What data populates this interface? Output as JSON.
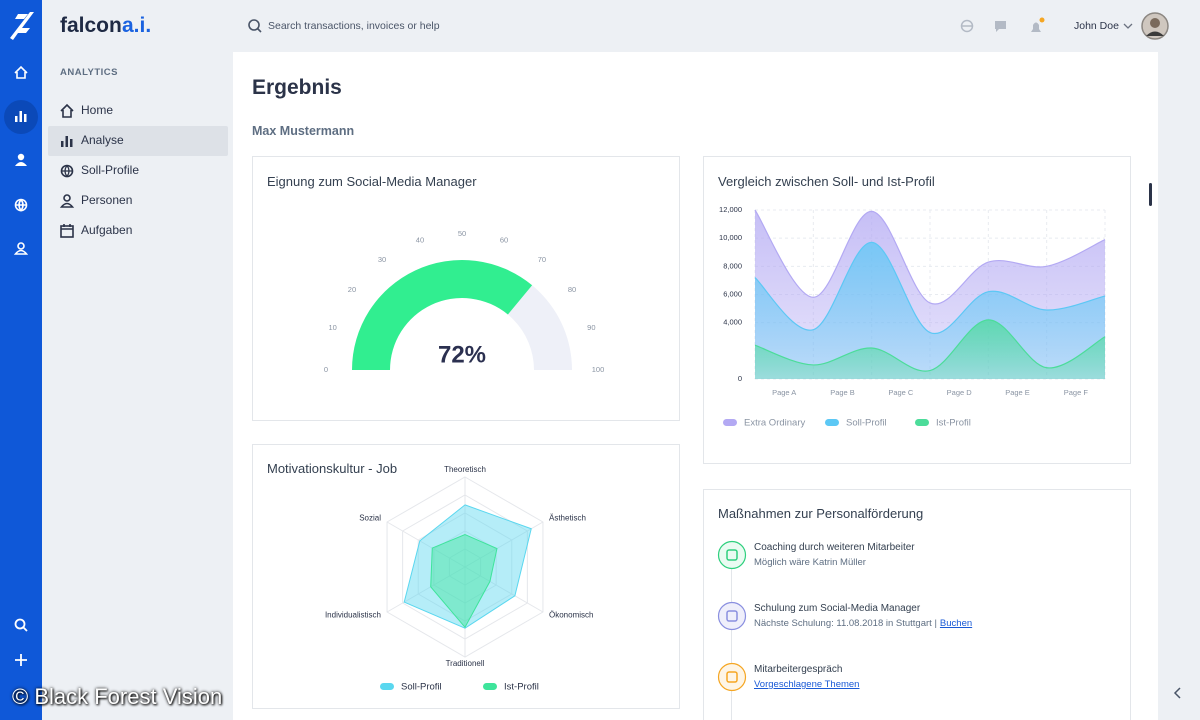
{
  "brand": {
    "name": "falcon",
    "suffix": "a.i."
  },
  "search_placeholder": "Search transactions, invoices or help",
  "user": "John Doe",
  "sidebar": {
    "section": "ANALYTICS",
    "items": [
      "Home",
      "Analyse",
      "Soll-Profile",
      "Personen",
      "Aufgaben"
    ],
    "active": 1
  },
  "page": {
    "title": "Ergebnis",
    "subtitle": "Max Mustermann"
  },
  "chart_data": [
    {
      "type": "gauge",
      "title": "Eignung zum Social-Media Manager",
      "values": [
        72
      ],
      "value_labels": [
        "72%"
      ],
      "color": "#31ee90",
      "ylim": [
        0,
        100
      ],
      "yticks": [
        0,
        10,
        20,
        30,
        40,
        50,
        60,
        70,
        80,
        90,
        100
      ]
    },
    {
      "type": "area",
      "title": "Vergleich zwischen Soll- und Ist-Profil",
      "categories": [
        "Page A",
        "Page B",
        "Page C",
        "Page D",
        "Page E",
        "Page F",
        null
      ],
      "series": [
        {
          "name": "Extra Ordinary",
          "color": "#b3a9f3",
          "values": [
            12000,
            5800,
            11900,
            5400,
            8300,
            8000,
            9900
          ]
        },
        {
          "name": "Soll-Profil",
          "color": "#5cc8f5",
          "values": [
            7200,
            3500,
            9700,
            3300,
            6200,
            4900,
            5900
          ]
        },
        {
          "name": "Ist-Profil",
          "color": "#4cdc9a",
          "values": [
            2400,
            1000,
            2200,
            600,
            4200,
            800,
            3000
          ]
        }
      ],
      "ylim": [
        0,
        12000
      ],
      "yticks": [
        0,
        {
          "value": 4000,
          "label": "4,000"
        },
        {
          "value": 6000,
          "label": "6,000"
        },
        {
          "value": 8000,
          "label": "8,000"
        },
        {
          "value": 10000,
          "label": "10,000"
        },
        {
          "value": 12000,
          "label": "12,000"
        }
      ],
      "grid": true
    },
    {
      "type": "radar",
      "title": "Motivationskultur - Job",
      "categories": [
        "Theoretisch",
        "Ästhetisch",
        "Ökonomisch",
        "Traditionell",
        "Individualistisch",
        "Sozial"
      ],
      "series": [
        {
          "name": "Soll-Profil",
          "color": "#5ad7ef",
          "values": [
            69,
            85,
            64,
            68,
            78,
            58
          ]
        },
        {
          "name": "Ist-Profil",
          "color": "#3ee49b",
          "values": [
            36,
            41,
            32,
            67,
            44,
            42
          ]
        }
      ],
      "ylim": [
        0,
        100
      ],
      "yticks": [
        20,
        40,
        60,
        80,
        100
      ],
      "grid": true
    }
  ],
  "actions": {
    "title": "Maßnahmen zur Personalförderung",
    "items": [
      {
        "title": "Coaching durch weiteren Mitarbeiter",
        "detail": "Möglich wäre Katrin Müller"
      },
      {
        "title": "Schulung zum Social-Media Manager",
        "detail": "Nächste Schulung: 11.08.2018 in Stuttgart |",
        "link": "Buchen"
      },
      {
        "title": "Mitarbeitergespräch",
        "link": "Vorgeschlagene Themen"
      }
    ]
  },
  "watermark": "© Black Forest Vision"
}
